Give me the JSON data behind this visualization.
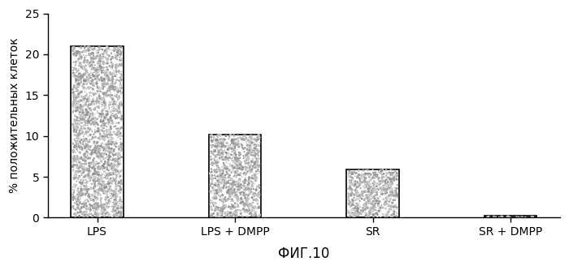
{
  "categories": [
    "LPS",
    "LPS + DMPP",
    "SR",
    "SR + DMPP"
  ],
  "values": [
    21.0,
    10.2,
    5.9,
    0.2
  ],
  "bar_color": "#ffffff",
  "bar_edge_color": "#000000",
  "bar_width": 0.38,
  "ylabel": "% положительных клеток",
  "xlabel": "ФИГ.10",
  "ylim": [
    0,
    25
  ],
  "yticks": [
    0,
    5,
    10,
    15,
    20,
    25
  ],
  "title": "",
  "background_color": "#ffffff",
  "ylabel_fontsize": 10,
  "xlabel_fontsize": 12,
  "tick_fontsize": 10,
  "noise_density": 0.18,
  "noise_color_min": 0.55,
  "noise_color_max": 0.85
}
